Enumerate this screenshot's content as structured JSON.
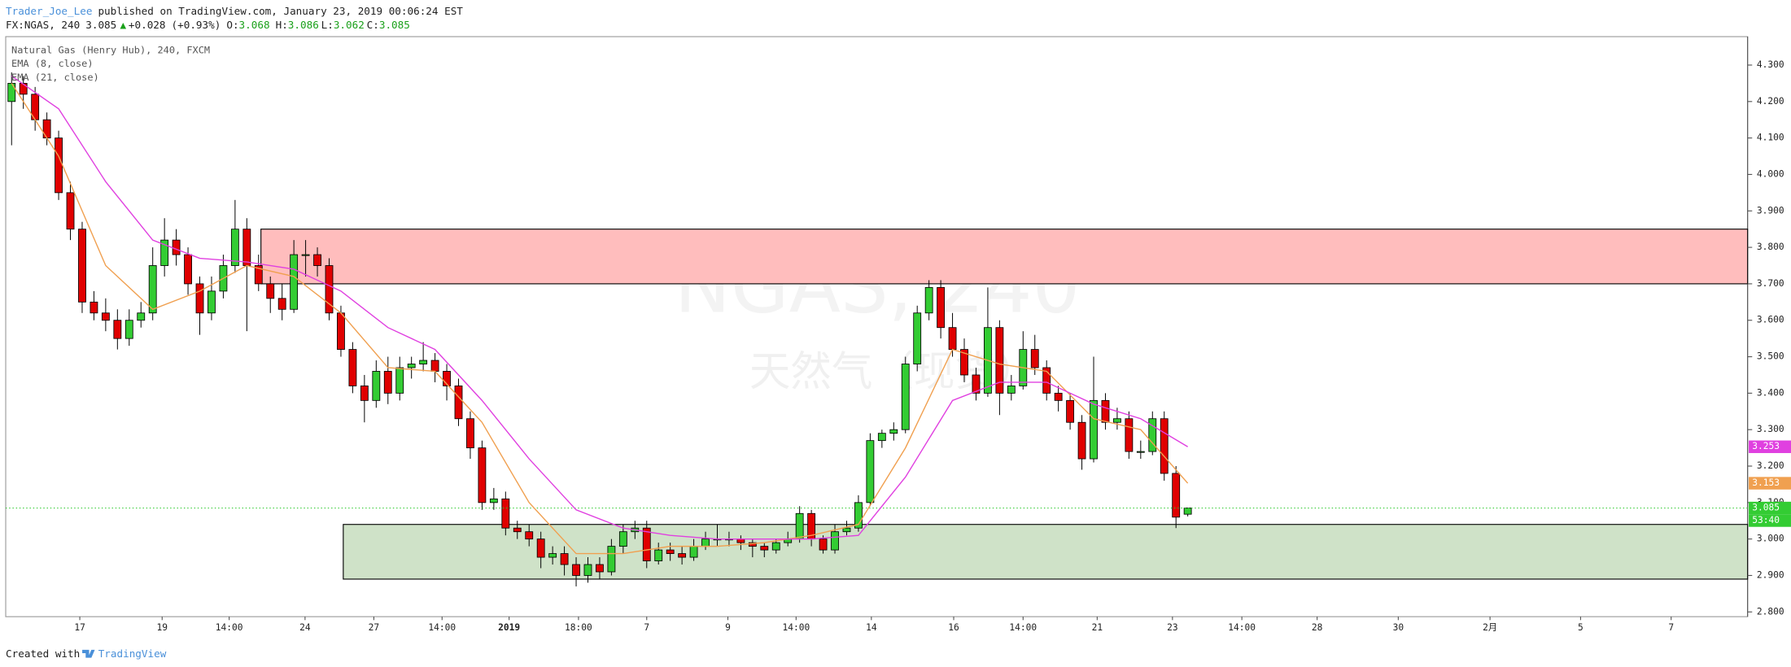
{
  "header": {
    "author": "Trader_Joe_Lee",
    "published": "published on TradingView.com, January 23, 2019 00:06:24 EST",
    "symbol": "FX:NGAS, 240",
    "change_arrow": "▲",
    "change": "+0.028",
    "change_pct": "(+0.93%)",
    "open_label": "O:",
    "high_label": "H:",
    "low_label": "L:",
    "close_label": "C:"
  },
  "chart_data": {
    "type": "candlestick",
    "watermark": "NGAS, 240",
    "watermark_sub": "天然气（现货）",
    "xlim": [
      -0.5,
      147.6
    ],
    "ylim": [
      2.787,
      4.378
    ],
    "grid": false,
    "xticks": [
      {
        "value": 5.8,
        "label": "17"
      },
      {
        "value": 12.8,
        "label": "19"
      },
      {
        "value": 18.5,
        "label": "14:00"
      },
      {
        "value": 24.95,
        "label": "24"
      },
      {
        "value": 30.8,
        "label": "27"
      },
      {
        "value": 36.6,
        "label": "14:00"
      },
      {
        "value": 42.3,
        "label": "2019"
      },
      {
        "value": 48.2,
        "label": "18:00"
      },
      {
        "value": 54,
        "label": "7"
      },
      {
        "value": 60.9,
        "label": "9"
      },
      {
        "value": 66.7,
        "label": "14:00"
      },
      {
        "value": 73.1,
        "label": "14"
      },
      {
        "value": 80.1,
        "label": "16"
      },
      {
        "value": 86,
        "label": "14:00"
      },
      {
        "value": 92.3,
        "label": "21"
      },
      {
        "value": 98.7,
        "label": "23"
      },
      {
        "value": 104.6,
        "label": "14:00"
      },
      {
        "value": 111,
        "label": "28"
      },
      {
        "value": 117.9,
        "label": "30"
      },
      {
        "value": 125.7,
        "label": "2月"
      },
      {
        "value": 133.4,
        "label": "5"
      },
      {
        "value": 141.1,
        "label": "7"
      }
    ],
    "yticks": [
      {
        "value": 2.8,
        "label": "2.800"
      },
      {
        "value": 2.9,
        "label": "2.900"
      },
      {
        "value": 3.0,
        "label": "3.000"
      },
      {
        "value": 3.1,
        "label": "3.100"
      },
      {
        "value": 3.2,
        "label": "3.200"
      },
      {
        "value": 3.3,
        "label": "3.300"
      },
      {
        "value": 3.4,
        "label": "3.400"
      },
      {
        "value": 3.5,
        "label": "3.500"
      },
      {
        "value": 3.6,
        "label": "3.600"
      },
      {
        "value": 3.7,
        "label": "3.700"
      },
      {
        "value": 3.8,
        "label": "3.800"
      },
      {
        "value": 3.9,
        "label": "3.900"
      },
      {
        "value": 4.0,
        "label": "4.000"
      },
      {
        "value": 4.1,
        "label": "4.100"
      },
      {
        "value": 4.2,
        "label": "4.200"
      },
      {
        "value": 4.3,
        "label": "4.300"
      }
    ],
    "zones": [
      {
        "x_start": 21.2,
        "low": 3.7,
        "high": 3.85,
        "color": "#ffbdbd"
      },
      {
        "x_start": 28.2,
        "low": 2.89,
        "high": 3.04,
        "color": "#cfe2c8"
      }
    ],
    "countdown": "53:40",
    "series": [
      {
        "name": "Natural Gas (Henry Hub), 240, FXCM",
        "type": "candlestick",
        "up_color": "#33cc33",
        "down_color": "#e00000",
        "color": "#33cc33",
        "values": [
          [
            4.2,
            4.28,
            4.08,
            4.25
          ],
          [
            4.25,
            4.27,
            4.18,
            4.22
          ],
          [
            4.22,
            4.24,
            4.12,
            4.15
          ],
          [
            4.15,
            4.17,
            4.08,
            4.1
          ],
          [
            4.1,
            4.12,
            3.93,
            3.95
          ],
          [
            3.95,
            3.98,
            3.82,
            3.85
          ],
          [
            3.85,
            3.87,
            3.62,
            3.65
          ],
          [
            3.65,
            3.68,
            3.6,
            3.62
          ],
          [
            3.62,
            3.66,
            3.57,
            3.6
          ],
          [
            3.6,
            3.63,
            3.52,
            3.55
          ],
          [
            3.55,
            3.63,
            3.53,
            3.6
          ],
          [
            3.6,
            3.65,
            3.58,
            3.62
          ],
          [
            3.62,
            3.8,
            3.6,
            3.75
          ],
          [
            3.75,
            3.88,
            3.72,
            3.82
          ],
          [
            3.82,
            3.85,
            3.75,
            3.78
          ],
          [
            3.78,
            3.8,
            3.67,
            3.7
          ],
          [
            3.7,
            3.72,
            3.56,
            3.62
          ],
          [
            3.62,
            3.72,
            3.6,
            3.68
          ],
          [
            3.68,
            3.78,
            3.66,
            3.75
          ],
          [
            3.75,
            3.93,
            3.73,
            3.85
          ],
          [
            3.85,
            3.88,
            3.57,
            3.75
          ],
          [
            3.75,
            3.78,
            3.68,
            3.7
          ],
          [
            3.7,
            3.72,
            3.62,
            3.66
          ],
          [
            3.66,
            3.7,
            3.6,
            3.63
          ],
          [
            3.63,
            3.82,
            3.62,
            3.78
          ],
          [
            3.78,
            3.82,
            3.72,
            3.78
          ],
          [
            3.78,
            3.8,
            3.72,
            3.75
          ],
          [
            3.75,
            3.77,
            3.6,
            3.62
          ],
          [
            3.62,
            3.64,
            3.5,
            3.52
          ],
          [
            3.52,
            3.54,
            3.4,
            3.42
          ],
          [
            3.42,
            3.45,
            3.32,
            3.38
          ],
          [
            3.38,
            3.49,
            3.36,
            3.46
          ],
          [
            3.46,
            3.5,
            3.37,
            3.4
          ],
          [
            3.4,
            3.5,
            3.38,
            3.47
          ],
          [
            3.47,
            3.5,
            3.44,
            3.48
          ],
          [
            3.48,
            3.54,
            3.46,
            3.49
          ],
          [
            3.49,
            3.51,
            3.43,
            3.46
          ],
          [
            3.46,
            3.48,
            3.38,
            3.42
          ],
          [
            3.42,
            3.44,
            3.31,
            3.33
          ],
          [
            3.33,
            3.35,
            3.22,
            3.25
          ],
          [
            3.25,
            3.27,
            3.08,
            3.1
          ],
          [
            3.1,
            3.14,
            3.08,
            3.11
          ],
          [
            3.11,
            3.13,
            3.01,
            3.03
          ],
          [
            3.03,
            3.05,
            3.0,
            3.02
          ],
          [
            3.02,
            3.04,
            2.98,
            3.0
          ],
          [
            3.0,
            3.02,
            2.92,
            2.95
          ],
          [
            2.95,
            2.98,
            2.93,
            2.96
          ],
          [
            2.96,
            2.98,
            2.9,
            2.93
          ],
          [
            2.93,
            2.95,
            2.87,
            2.9
          ],
          [
            2.9,
            2.95,
            2.88,
            2.93
          ],
          [
            2.93,
            2.95,
            2.89,
            2.91
          ],
          [
            2.91,
            3.0,
            2.9,
            2.98
          ],
          [
            2.98,
            3.04,
            2.96,
            3.02
          ],
          [
            3.02,
            3.05,
            3.0,
            3.03
          ],
          [
            3.03,
            3.05,
            2.92,
            2.94
          ],
          [
            2.94,
            2.99,
            2.93,
            2.97
          ],
          [
            2.97,
            2.99,
            2.94,
            2.96
          ],
          [
            2.96,
            2.98,
            2.93,
            2.95
          ],
          [
            2.95,
            3.0,
            2.94,
            2.98
          ],
          [
            2.98,
            3.02,
            2.97,
            3.0
          ],
          [
            3.0,
            3.04,
            2.98,
            3.0
          ],
          [
            3.0,
            3.02,
            2.98,
            3.0
          ],
          [
            3.0,
            3.01,
            2.97,
            2.99
          ],
          [
            2.99,
            3.0,
            2.95,
            2.98
          ],
          [
            2.98,
            2.99,
            2.95,
            2.97
          ],
          [
            2.97,
            3.0,
            2.96,
            2.99
          ],
          [
            2.99,
            3.02,
            2.98,
            3.0
          ],
          [
            3.0,
            3.09,
            2.99,
            3.07
          ],
          [
            3.07,
            3.08,
            2.98,
            3.0
          ],
          [
            3.0,
            3.01,
            2.96,
            2.97
          ],
          [
            2.97,
            3.04,
            2.96,
            3.02
          ],
          [
            3.02,
            3.05,
            3.01,
            3.03
          ],
          [
            3.03,
            3.12,
            3.02,
            3.1
          ],
          [
            3.1,
            3.29,
            3.09,
            3.27
          ],
          [
            3.27,
            3.3,
            3.25,
            3.29
          ],
          [
            3.29,
            3.32,
            3.27,
            3.3
          ],
          [
            3.3,
            3.5,
            3.29,
            3.48
          ],
          [
            3.48,
            3.64,
            3.46,
            3.62
          ],
          [
            3.62,
            3.71,
            3.6,
            3.69
          ],
          [
            3.69,
            3.71,
            3.55,
            3.58
          ],
          [
            3.58,
            3.62,
            3.5,
            3.52
          ],
          [
            3.52,
            3.55,
            3.43,
            3.45
          ],
          [
            3.45,
            3.47,
            3.38,
            3.4
          ],
          [
            3.4,
            3.69,
            3.39,
            3.58
          ],
          [
            3.58,
            3.6,
            3.34,
            3.4
          ],
          [
            3.4,
            3.45,
            3.38,
            3.42
          ],
          [
            3.42,
            3.57,
            3.41,
            3.52
          ],
          [
            3.52,
            3.56,
            3.45,
            3.47
          ],
          [
            3.47,
            3.49,
            3.38,
            3.4
          ],
          [
            3.4,
            3.42,
            3.35,
            3.38
          ],
          [
            3.38,
            3.4,
            3.3,
            3.32
          ],
          [
            3.32,
            3.34,
            3.19,
            3.22
          ],
          [
            3.22,
            3.5,
            3.21,
            3.38
          ],
          [
            3.38,
            3.4,
            3.3,
            3.32
          ],
          [
            3.32,
            3.36,
            3.3,
            3.33
          ],
          [
            3.33,
            3.35,
            3.22,
            3.24
          ],
          [
            3.24,
            3.27,
            3.22,
            3.24
          ],
          [
            3.24,
            3.35,
            3.23,
            3.33
          ],
          [
            3.33,
            3.35,
            3.16,
            3.18
          ],
          [
            3.18,
            3.2,
            3.03,
            3.06
          ],
          [
            3.068,
            3.086,
            3.062,
            3.085
          ]
        ]
      },
      {
        "name": "EMA (8, close)",
        "type": "line",
        "color": "#f0a050",
        "x": [
          0,
          4,
          8,
          12,
          16,
          20,
          24,
          28,
          32,
          36,
          40,
          44,
          48,
          52,
          56,
          60,
          64,
          68,
          72,
          76,
          80,
          84,
          88,
          92,
          96,
          100
        ],
        "values": [
          4.25,
          4.05,
          3.75,
          3.63,
          3.68,
          3.75,
          3.72,
          3.62,
          3.47,
          3.46,
          3.32,
          3.1,
          2.96,
          2.96,
          2.98,
          2.98,
          2.99,
          3.01,
          3.04,
          3.25,
          3.52,
          3.48,
          3.46,
          3.33,
          3.3,
          3.153
        ]
      },
      {
        "name": "EMA (21, close)",
        "type": "line",
        "color": "#e040e0",
        "x": [
          0,
          4,
          8,
          12,
          16,
          20,
          24,
          28,
          32,
          36,
          40,
          44,
          48,
          52,
          56,
          60,
          64,
          68,
          72,
          76,
          80,
          84,
          88,
          92,
          96,
          100
        ],
        "values": [
          4.27,
          4.18,
          3.98,
          3.82,
          3.77,
          3.76,
          3.74,
          3.68,
          3.58,
          3.52,
          3.38,
          3.22,
          3.08,
          3.03,
          3.01,
          3.0,
          3.0,
          3.0,
          3.01,
          3.17,
          3.38,
          3.43,
          3.43,
          3.37,
          3.33,
          3.253
        ]
      }
    ]
  },
  "footer": {
    "created": "Created with",
    "brand": "TradingView"
  }
}
